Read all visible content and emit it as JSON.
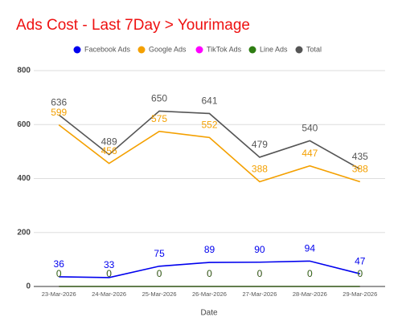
{
  "chart_data": {
    "type": "line",
    "title": "Ads Cost - Last 7Day > Yourimage",
    "x_label": "Date",
    "categories": [
      "23-Mar-2026",
      "24-Mar-2026",
      "25-Mar-2026",
      "26-Mar-2026",
      "27-Mar-2026",
      "28-Mar-2026",
      "29-Mar-2026"
    ],
    "series": [
      {
        "name": "Facebook Ads",
        "color": "#0000ee",
        "values": [
          36,
          33,
          75,
          89,
          90,
          94,
          47
        ]
      },
      {
        "name": "Google Ads",
        "color": "#f4a000",
        "values": [
          599,
          456,
          575,
          552,
          388,
          447,
          388
        ]
      },
      {
        "name": "TikTok Ads",
        "color": "#ff00ff",
        "values": [
          0,
          0,
          0,
          0,
          0,
          0,
          0
        ]
      },
      {
        "name": "Line Ads",
        "color": "#2e7d12",
        "values": [
          0,
          0,
          0,
          0,
          0,
          0,
          0
        ]
      },
      {
        "name": "Total",
        "color": "#555555",
        "values": [
          636,
          489,
          650,
          641,
          479,
          540,
          435
        ]
      }
    ],
    "ylim": [
      0,
      800
    ],
    "yticks": [
      0,
      200,
      400,
      600,
      800
    ],
    "grid": true
  }
}
